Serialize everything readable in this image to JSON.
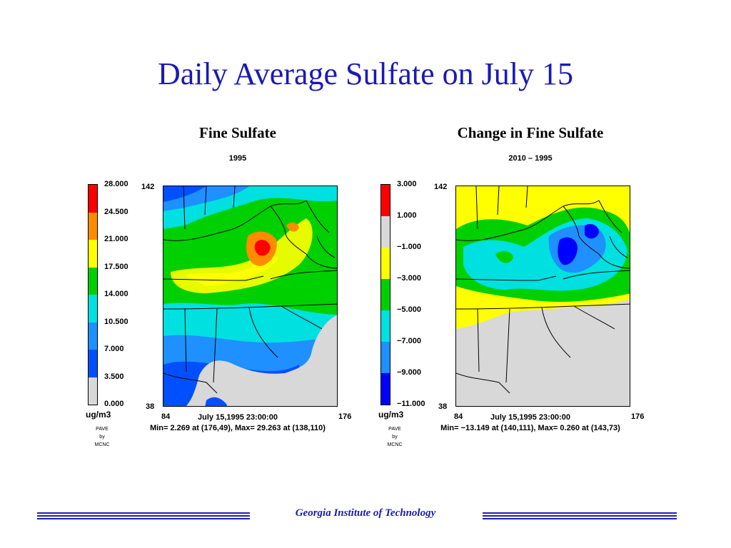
{
  "slide": {
    "title": "Daily Average Sulfate on July 15",
    "footer": "Georgia Institute of Technology"
  },
  "panels": [
    {
      "title": "Fine Sulfate",
      "subtitle": "1995",
      "legend": {
        "labels": [
          "28.000",
          "24.500",
          "21.000",
          "17.500",
          "14.000",
          "10.500",
          "7.000",
          "3.500",
          "0.000"
        ],
        "colors": [
          "#ff0000",
          "#ff8c00",
          "#ffff00",
          "#00d000",
          "#00e0e0",
          "#1e90ff",
          "#0050ff",
          "#d8d8d8"
        ]
      },
      "unit": "ug/m3",
      "credit": [
        "PAVE",
        "by",
        "MCNC"
      ],
      "axis": {
        "y_top": "142",
        "y_bottom": "38",
        "x_left": "84",
        "x_right": "176"
      },
      "timestamp": "July 15,1995 23:00:00",
      "stats": "Min=   2.269 at (176,49), Max=  29.263 at (138,110)"
    },
    {
      "title": "Change in Fine Sulfate",
      "subtitle": "2010 – 1995",
      "legend": {
        "labels": [
          "3.000",
          "1.000",
          "−1.000",
          "−3.000",
          "−5.000",
          "−7.000",
          "−9.000",
          "−11.000"
        ],
        "colors": [
          "#ff0000",
          "#d8d8d8",
          "#ffff00",
          "#00d000",
          "#00e0e0",
          "#1e90ff",
          "#0000ff"
        ]
      },
      "unit": "ug/m3",
      "credit": [
        "PAVE",
        "by",
        "MCNC"
      ],
      "axis": {
        "y_top": "142",
        "y_bottom": "38",
        "x_left": "84",
        "x_right": "176"
      },
      "timestamp": "July 15,1995 23:00:00",
      "stats": "Min= −13.149 at (140,111), Max=   0.260 at (143,73)"
    }
  ]
}
